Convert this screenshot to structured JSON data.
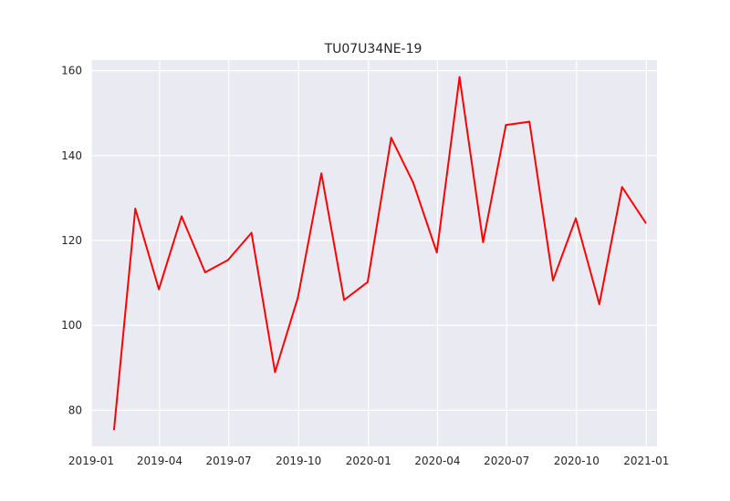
{
  "chart_data": {
    "type": "line",
    "title": "TU07U34NE-19",
    "xlabel": "",
    "ylabel": "",
    "grid": true,
    "x_axis": {
      "type": "date",
      "range": [
        "2019-01-01",
        "2021-01-15"
      ],
      "ticks": [
        {
          "date": "2019-01-01",
          "label": "2019-01"
        },
        {
          "date": "2019-04-01",
          "label": "2019-04"
        },
        {
          "date": "2019-07-01",
          "label": "2019-07"
        },
        {
          "date": "2019-10-01",
          "label": "2019-10"
        },
        {
          "date": "2020-01-01",
          "label": "2020-01"
        },
        {
          "date": "2020-04-01",
          "label": "2020-04"
        },
        {
          "date": "2020-07-01",
          "label": "2020-07"
        },
        {
          "date": "2020-10-01",
          "label": "2020-10"
        },
        {
          "date": "2021-01-01",
          "label": "2021-01"
        }
      ]
    },
    "y_axis": {
      "range": [
        71.5,
        162.5
      ],
      "ticks": [
        80,
        100,
        120,
        140,
        160
      ]
    },
    "series": [
      {
        "color": "#ff0000",
        "points": [
          {
            "x": "2019-01-31",
            "y": 75.5
          },
          {
            "x": "2019-02-28",
            "y": 127.5
          },
          {
            "x": "2019-03-31",
            "y": 108.5
          },
          {
            "x": "2019-04-30",
            "y": 125.7
          },
          {
            "x": "2019-05-31",
            "y": 112.5
          },
          {
            "x": "2019-06-30",
            "y": 115.4
          },
          {
            "x": "2019-07-31",
            "y": 121.8
          },
          {
            "x": "2019-08-31",
            "y": 89.0
          },
          {
            "x": "2019-09-30",
            "y": 106.5
          },
          {
            "x": "2019-10-31",
            "y": 135.8
          },
          {
            "x": "2019-11-30",
            "y": 106.0
          },
          {
            "x": "2019-12-31",
            "y": 110.2
          },
          {
            "x": "2020-01-31",
            "y": 144.2
          },
          {
            "x": "2020-02-29",
            "y": 133.6
          },
          {
            "x": "2020-03-31",
            "y": 117.2
          },
          {
            "x": "2020-04-30",
            "y": 158.5
          },
          {
            "x": "2020-05-31",
            "y": 119.6
          },
          {
            "x": "2020-06-30",
            "y": 147.2
          },
          {
            "x": "2020-07-31",
            "y": 148.0
          },
          {
            "x": "2020-08-31",
            "y": 110.6
          },
          {
            "x": "2020-09-30",
            "y": 125.2
          },
          {
            "x": "2020-10-31",
            "y": 105.0
          },
          {
            "x": "2020-11-30",
            "y": 132.6
          },
          {
            "x": "2020-12-31",
            "y": 124.2
          }
        ]
      }
    ]
  }
}
